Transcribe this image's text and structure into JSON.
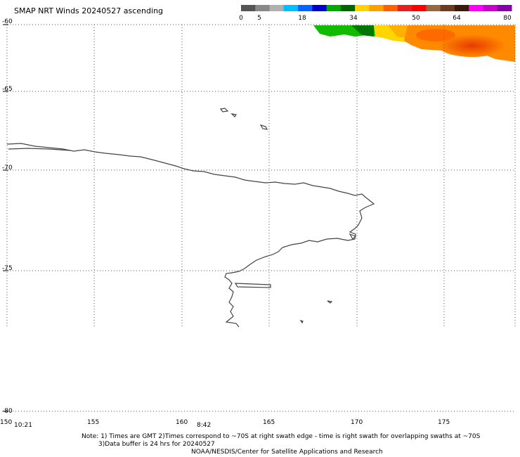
{
  "title": "SMAP NRT Winds 20240527 ascending",
  "colorbar": {
    "ticks": [
      "0",
      "5",
      "18",
      "34",
      "50",
      "64",
      "80"
    ],
    "colors": [
      "#555555",
      "#888888",
      "#b0b0b0",
      "#00bfff",
      "#0066ff",
      "#0000cc",
      "#00aa00",
      "#006600",
      "#ffd200",
      "#ffa000",
      "#ff6000",
      "#e62020",
      "#ff0000",
      "#996644",
      "#6b3a1f",
      "#3a1a0a",
      "#ff00ff",
      "#cc00cc",
      "#8800aa"
    ]
  },
  "lat_labels": [
    "-60",
    "-65",
    "-70",
    "-75",
    "-80"
  ],
  "lon_labels": [
    "150",
    "155",
    "160",
    "165",
    "170",
    "175"
  ],
  "time_labels": [
    "10:21",
    "8:42"
  ],
  "notes": {
    "line1": "Note: 1) Times are GMT 2)Times correspond to ~70S at right swath edge - time is right swath for overlapping swaths at ~70S",
    "line2": "3)Data buffer is 24 hrs for 20240527",
    "line3": "NOAA/NESDIS/Center for Satellite Applications and Research"
  }
}
